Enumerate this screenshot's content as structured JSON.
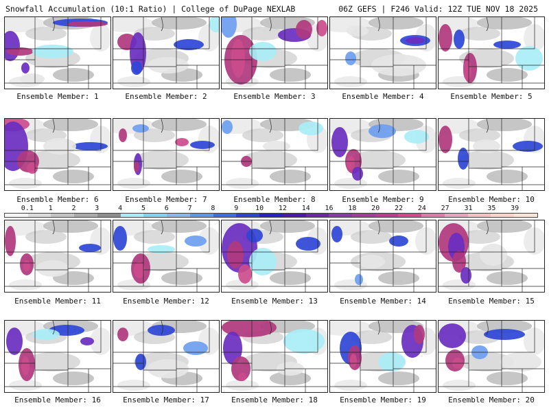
{
  "header": {
    "left": "Snowfall Accumulation (10:1 Ratio) | College of DuPage NEXLAB",
    "right": "06Z GEFS | F246 Valid: 12Z TUE NOV 18 2025"
  },
  "member_label_prefix": "Ensemble Member: ",
  "members": [
    {
      "label": "Ensemble Member: 1"
    },
    {
      "label": "Ensemble Member: 2"
    },
    {
      "label": "Ensemble Member: 3"
    },
    {
      "label": "Ensemble Member: 4"
    },
    {
      "label": "Ensemble Member: 5"
    },
    {
      "label": "Ensemble Member: 6"
    },
    {
      "label": "Ensemble Member: 7"
    },
    {
      "label": "Ensemble Member: 8"
    },
    {
      "label": "Ensemble Member: 9"
    },
    {
      "label": "Ensemble Member: 10"
    },
    {
      "label": "Ensemble Member: 11"
    },
    {
      "label": "Ensemble Member: 12"
    },
    {
      "label": "Ensemble Member: 13"
    },
    {
      "label": "Ensemble Member: 14"
    },
    {
      "label": "Ensemble Member: 15"
    },
    {
      "label": "Ensemble Member: 16"
    },
    {
      "label": "Ensemble Member: 17"
    },
    {
      "label": "Ensemble Member: 18"
    },
    {
      "label": "Ensemble Member: 19"
    },
    {
      "label": "Ensemble Member: 20"
    }
  ],
  "colorbar": {
    "ticks": [
      "0.1",
      "1",
      "2",
      "3",
      "4",
      "5",
      "6",
      "7",
      "8",
      "9",
      "10",
      "12",
      "14",
      "16",
      "18",
      "20",
      "22",
      "24",
      "27",
      "31",
      "35",
      "39"
    ],
    "colors": [
      "#f4f4f4",
      "#dcdcdc",
      "#c4c4c4",
      "#aaaaaa",
      "#8e8e8e",
      "#a6eef5",
      "#7fd4f5",
      "#86b8ee",
      "#5b98e6",
      "#3b6fde",
      "#2c46d4",
      "#2a1fc8",
      "#4a1aa8",
      "#6a28a8",
      "#8a3aa8",
      "#a23c9e",
      "#bc3c8e",
      "#d24a8c",
      "#e07aa8",
      "#e9a3bd",
      "#f0c2c2",
      "#f6d6cc",
      "#f9e4d8"
    ]
  },
  "colors": {
    "grays": [
      "#e6e6e6",
      "#cfcfcf",
      "#b3b3b3"
    ],
    "cyan": "#a9eef6",
    "blue": "#6d9ef0",
    "royal": "#2f47d6",
    "purple": "#6a2ec0",
    "magenta": "#b0387d",
    "pink": "#cc4c8c",
    "borders": "#222222"
  }
}
